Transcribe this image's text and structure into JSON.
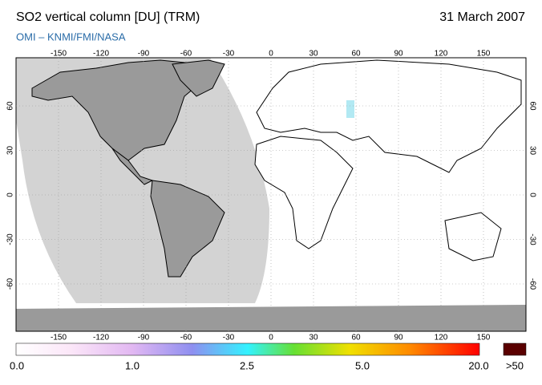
{
  "header": {
    "title": "SO2 vertical column [DU] (TRM)",
    "date": "31 March 2007",
    "subtitle": "OMI  –  KNMI/FMI/NASA"
  },
  "map": {
    "lon_ticks": [
      -150,
      -120,
      -90,
      -60,
      -30,
      0,
      30,
      60,
      90,
      120,
      150
    ],
    "lat_ticks": [
      60,
      30,
      0,
      -30,
      -60
    ]
  },
  "colorbar": {
    "labels": [
      "0.0",
      "1.0",
      "2.5",
      "5.0",
      "20.0",
      ">50"
    ]
  }
}
